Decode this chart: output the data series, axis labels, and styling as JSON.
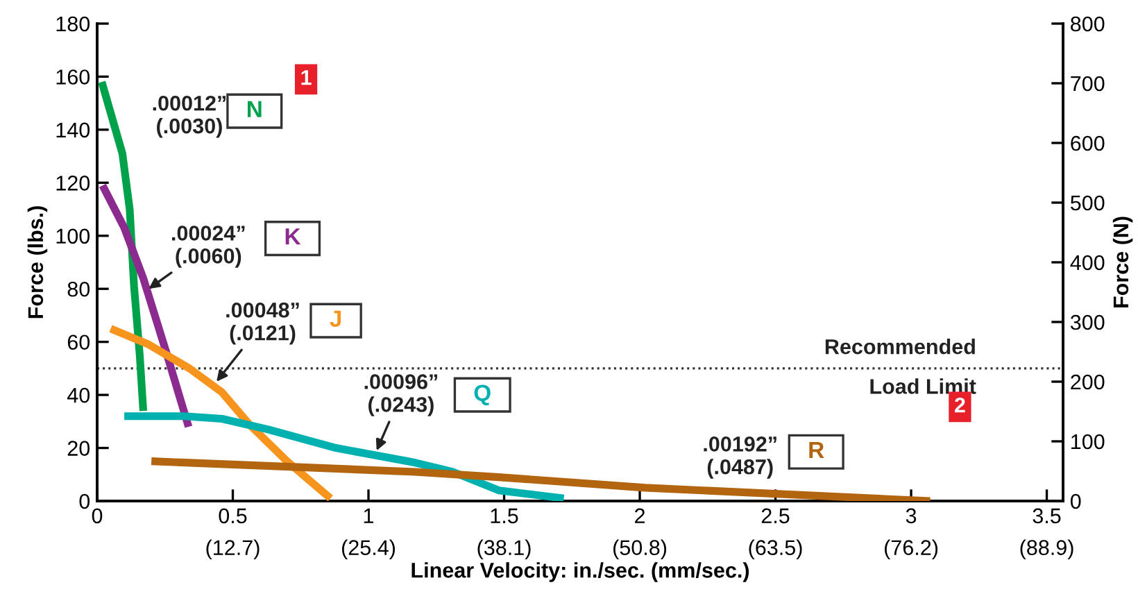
{
  "chart_data": {
    "type": "line",
    "xlabel": "Linear Velocity: in./sec. (mm/sec.)",
    "ylabel": "Force (lbs.)",
    "y2label": "Force (N)",
    "xlim": [
      0,
      3.56
    ],
    "ylim": [
      0,
      180
    ],
    "y2lim": [
      0,
      800
    ],
    "xticks": [
      0,
      0.5,
      1,
      1.5,
      2,
      2.5,
      3,
      3.5
    ],
    "x2lim": [
      0,
      90.424
    ],
    "x2ticks": [
      {
        "value": 12.7,
        "label": "(12.7)"
      },
      {
        "value": 25.4,
        "label": "(25.4)"
      },
      {
        "value": 38.1,
        "label": "(38.1)"
      },
      {
        "value": 50.8,
        "label": "(50.8)"
      },
      {
        "value": 63.5,
        "label": "(63.5)"
      },
      {
        "value": 76.2,
        "label": "(76.2)"
      },
      {
        "value": 88.9,
        "label": "(88.9)"
      }
    ],
    "yticks": [
      0,
      20,
      40,
      60,
      80,
      100,
      120,
      140,
      160,
      180
    ],
    "y2ticks": [
      0,
      100,
      200,
      300,
      400,
      500,
      600,
      700,
      800
    ],
    "grid": false,
    "marker": "none",
    "line_style": "solid",
    "series": [
      {
        "name": "N",
        "color": "#00a14b",
        "x": [
          0.017,
          0.093,
          0.12,
          0.136,
          0.157,
          0.17
        ],
        "values": [
          158,
          131,
          110,
          81,
          55,
          34
        ]
      },
      {
        "name": "K",
        "color": "#8b2a8f",
        "x": [
          0.02,
          0.1,
          0.17,
          0.255,
          0.337
        ],
        "values": [
          119,
          103,
          84,
          56,
          28
        ]
      },
      {
        "name": "J",
        "color": "#f7941d",
        "x": [
          0.05,
          0.19,
          0.34,
          0.46,
          0.56,
          0.7,
          0.86
        ],
        "values": [
          65,
          59,
          50,
          41,
          29,
          15,
          1
        ]
      },
      {
        "name": "Q",
        "color": "#00b1b0",
        "x": [
          0.1,
          0.32,
          0.46,
          0.63,
          0.88,
          1.17,
          1.31,
          1.48,
          1.72
        ],
        "values": [
          32,
          32,
          31,
          27,
          20,
          14.5,
          11,
          4,
          1
        ]
      },
      {
        "name": "R",
        "color": "#b2640f",
        "x": [
          0.2,
          1.17,
          1.48,
          2.02,
          3.07
        ],
        "values": [
          15,
          11,
          9,
          5,
          0
        ]
      }
    ],
    "ref_lines": [
      {
        "axis": "y",
        "value": 50,
        "label": "Recommended\nLoad Limit",
        "color": "#333333",
        "line_style": "dotted"
      }
    ],
    "annotations": [
      ".00012”\n(.0030)",
      {
        "text": ".00024”\n(.0060)",
        "x": 0.19,
        "y": 80
      },
      {
        "text": ".00048”\n(.0121)",
        "x": 0.44,
        "y": 45
      },
      {
        "text": ".00096”\n(.0243)",
        "x": 1.03,
        "y": 19
      },
      ".00192”\n(.0487)",
      "1",
      "2"
    ]
  }
}
